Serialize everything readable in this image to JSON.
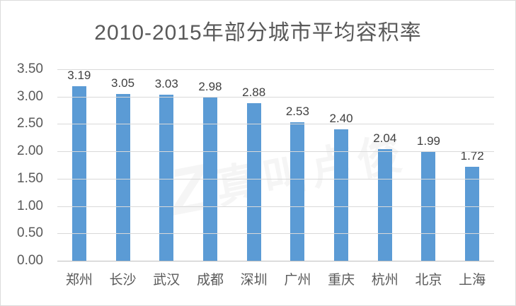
{
  "chart_data": {
    "type": "bar",
    "title": "2010-2015年部分城市平均容积率",
    "categories": [
      "郑州",
      "长沙",
      "武汉",
      "成都",
      "深圳",
      "广州",
      "重庆",
      "杭州",
      "北京",
      "上海"
    ],
    "values": [
      3.19,
      3.05,
      3.03,
      2.98,
      2.88,
      2.53,
      2.4,
      2.04,
      1.99,
      1.72
    ],
    "value_labels": [
      "3.19",
      "3.05",
      "3.03",
      "2.98",
      "2.88",
      "2.53",
      "2.40",
      "2.04",
      "1.99",
      "1.72"
    ],
    "y_ticks": [
      "3.50",
      "3.00",
      "2.50",
      "2.00",
      "1.50",
      "1.00",
      "0.50",
      "0.00"
    ],
    "ylim": [
      0,
      3.5
    ],
    "xlabel": "",
    "ylabel": "",
    "grid": true,
    "legend_position": "none",
    "bar_color": "#5B9BD5",
    "gridline_color": "#d9d9d9",
    "axis_line_color": "#bfbfbf",
    "title_color": "#595959",
    "tick_label_color": "#595959",
    "value_label_color": "#404040"
  },
  "watermark": {
    "logo": "Z",
    "text": "真叫卢俊"
  }
}
